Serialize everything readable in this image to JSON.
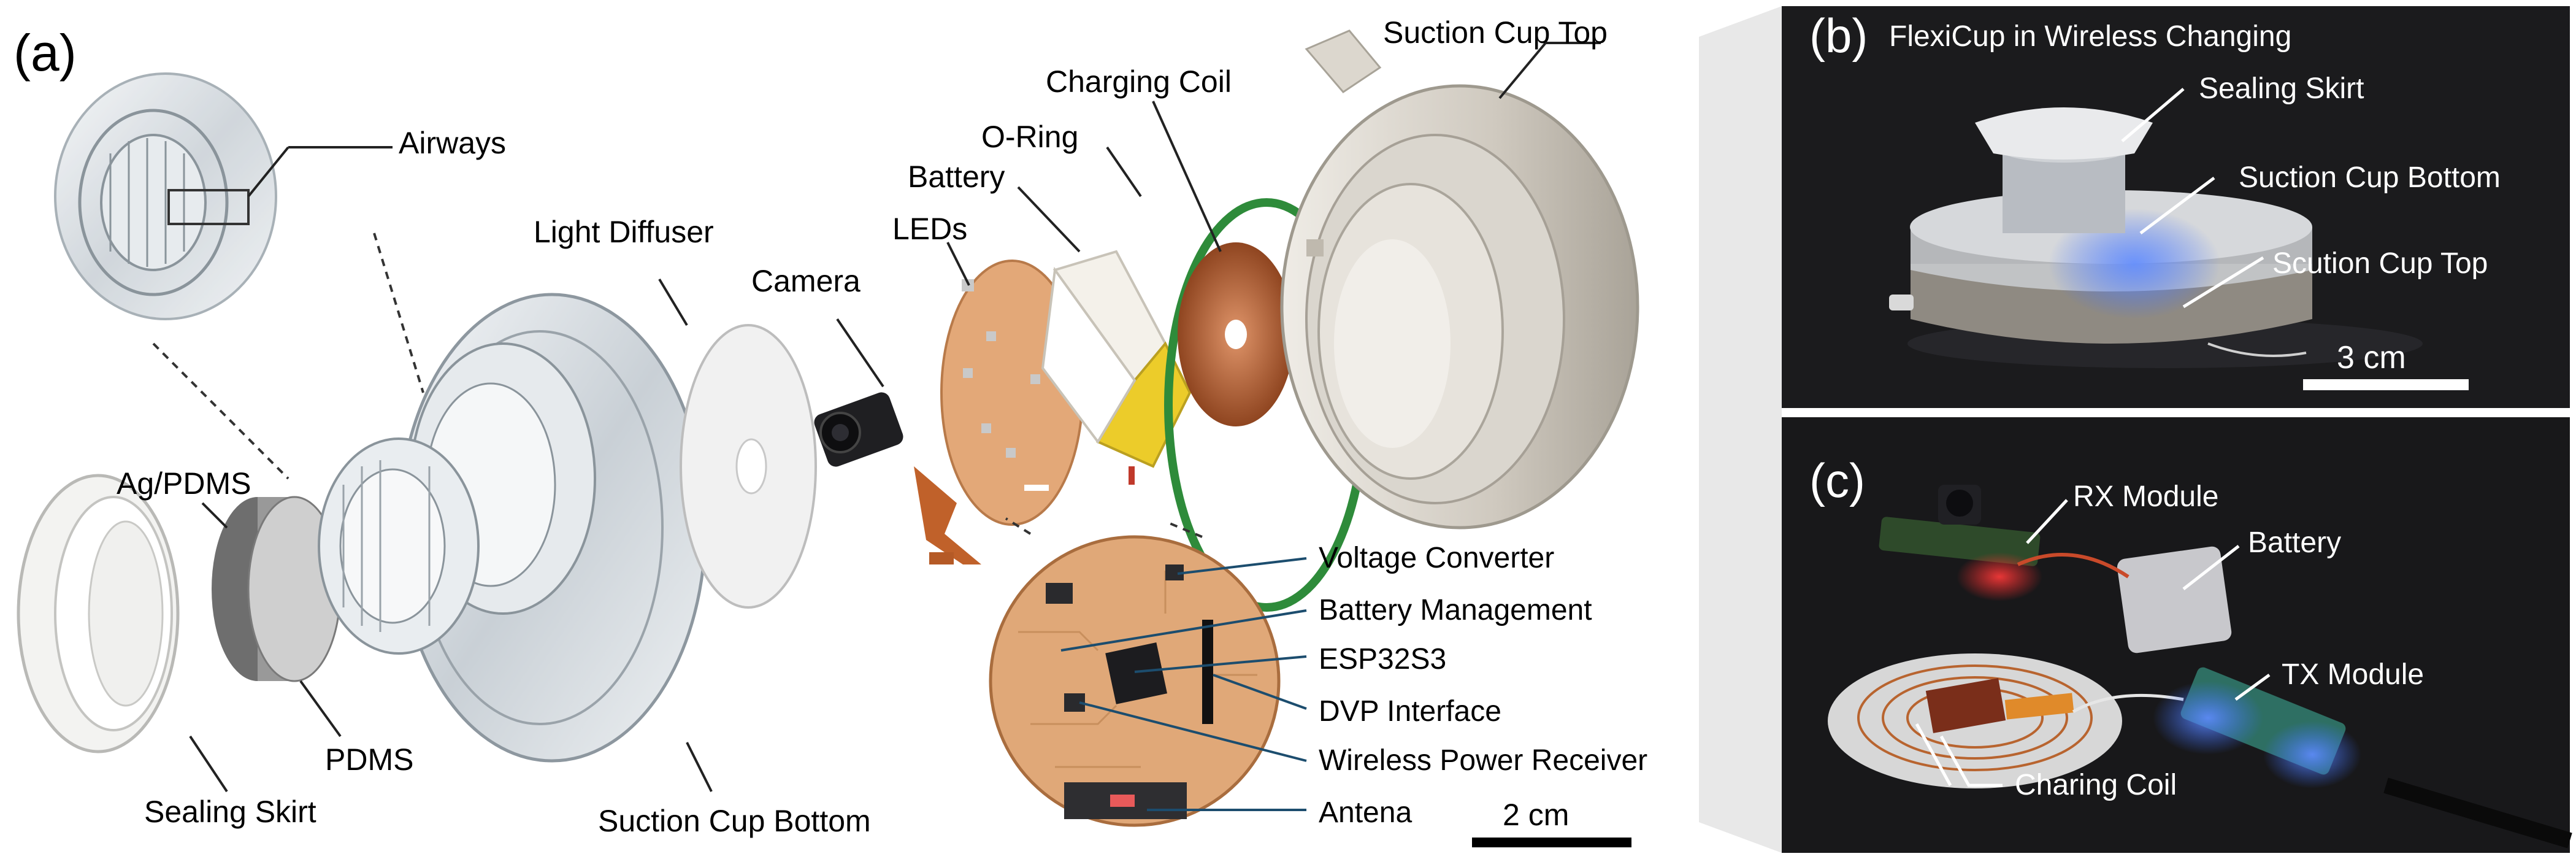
{
  "panel_a": {
    "tag": "(a)",
    "labels": {
      "airways": "Airways",
      "light_diffuser": "Light Diffuser",
      "ag_pdms": "Ag/PDMS",
      "pdms": "PDMS",
      "sealing_skirt": "Sealing Skirt",
      "suction_cup_bottom": "Suction Cup Bottom",
      "camera": "Camera",
      "leds": "LEDs",
      "battery": "Battery",
      "o_ring": "O-Ring",
      "charging_coil": "Charging Coil",
      "suction_cup_top": "Suction Cup Top",
      "voltage_converter": "Voltage Converter",
      "battery_management": "Battery Management",
      "esp32s3": "ESP32S3",
      "dvp_interface": "DVP Interface",
      "wireless_power_receiver": "Wireless Power Receiver",
      "antena": "Antena"
    },
    "scale_bar": "2 cm"
  },
  "panel_b": {
    "tag": "(b)",
    "title": "FlexiCup in Wireless Changing",
    "labels": {
      "sealing_skirt": "Sealing Skirt",
      "suction_cup_bottom": "Suction Cup Bottom",
      "scution_cup_top": "Scution Cup Top"
    },
    "scale_bar": "3 cm"
  },
  "panel_c": {
    "tag": "(c)",
    "labels": {
      "rx_module": "RX Module",
      "battery": "Battery",
      "tx_module": "TX Module",
      "charing_coil": "Charing Coil"
    }
  },
  "colors": {
    "photo_bg": "#1b1b1d",
    "copper": "#b8642f",
    "pcb": "#e0a878",
    "o_ring": "#2e8b3a",
    "suction_top": "#d2cdc3",
    "led_blue": "#3a6cff",
    "led_red": "#ff2a2a"
  }
}
